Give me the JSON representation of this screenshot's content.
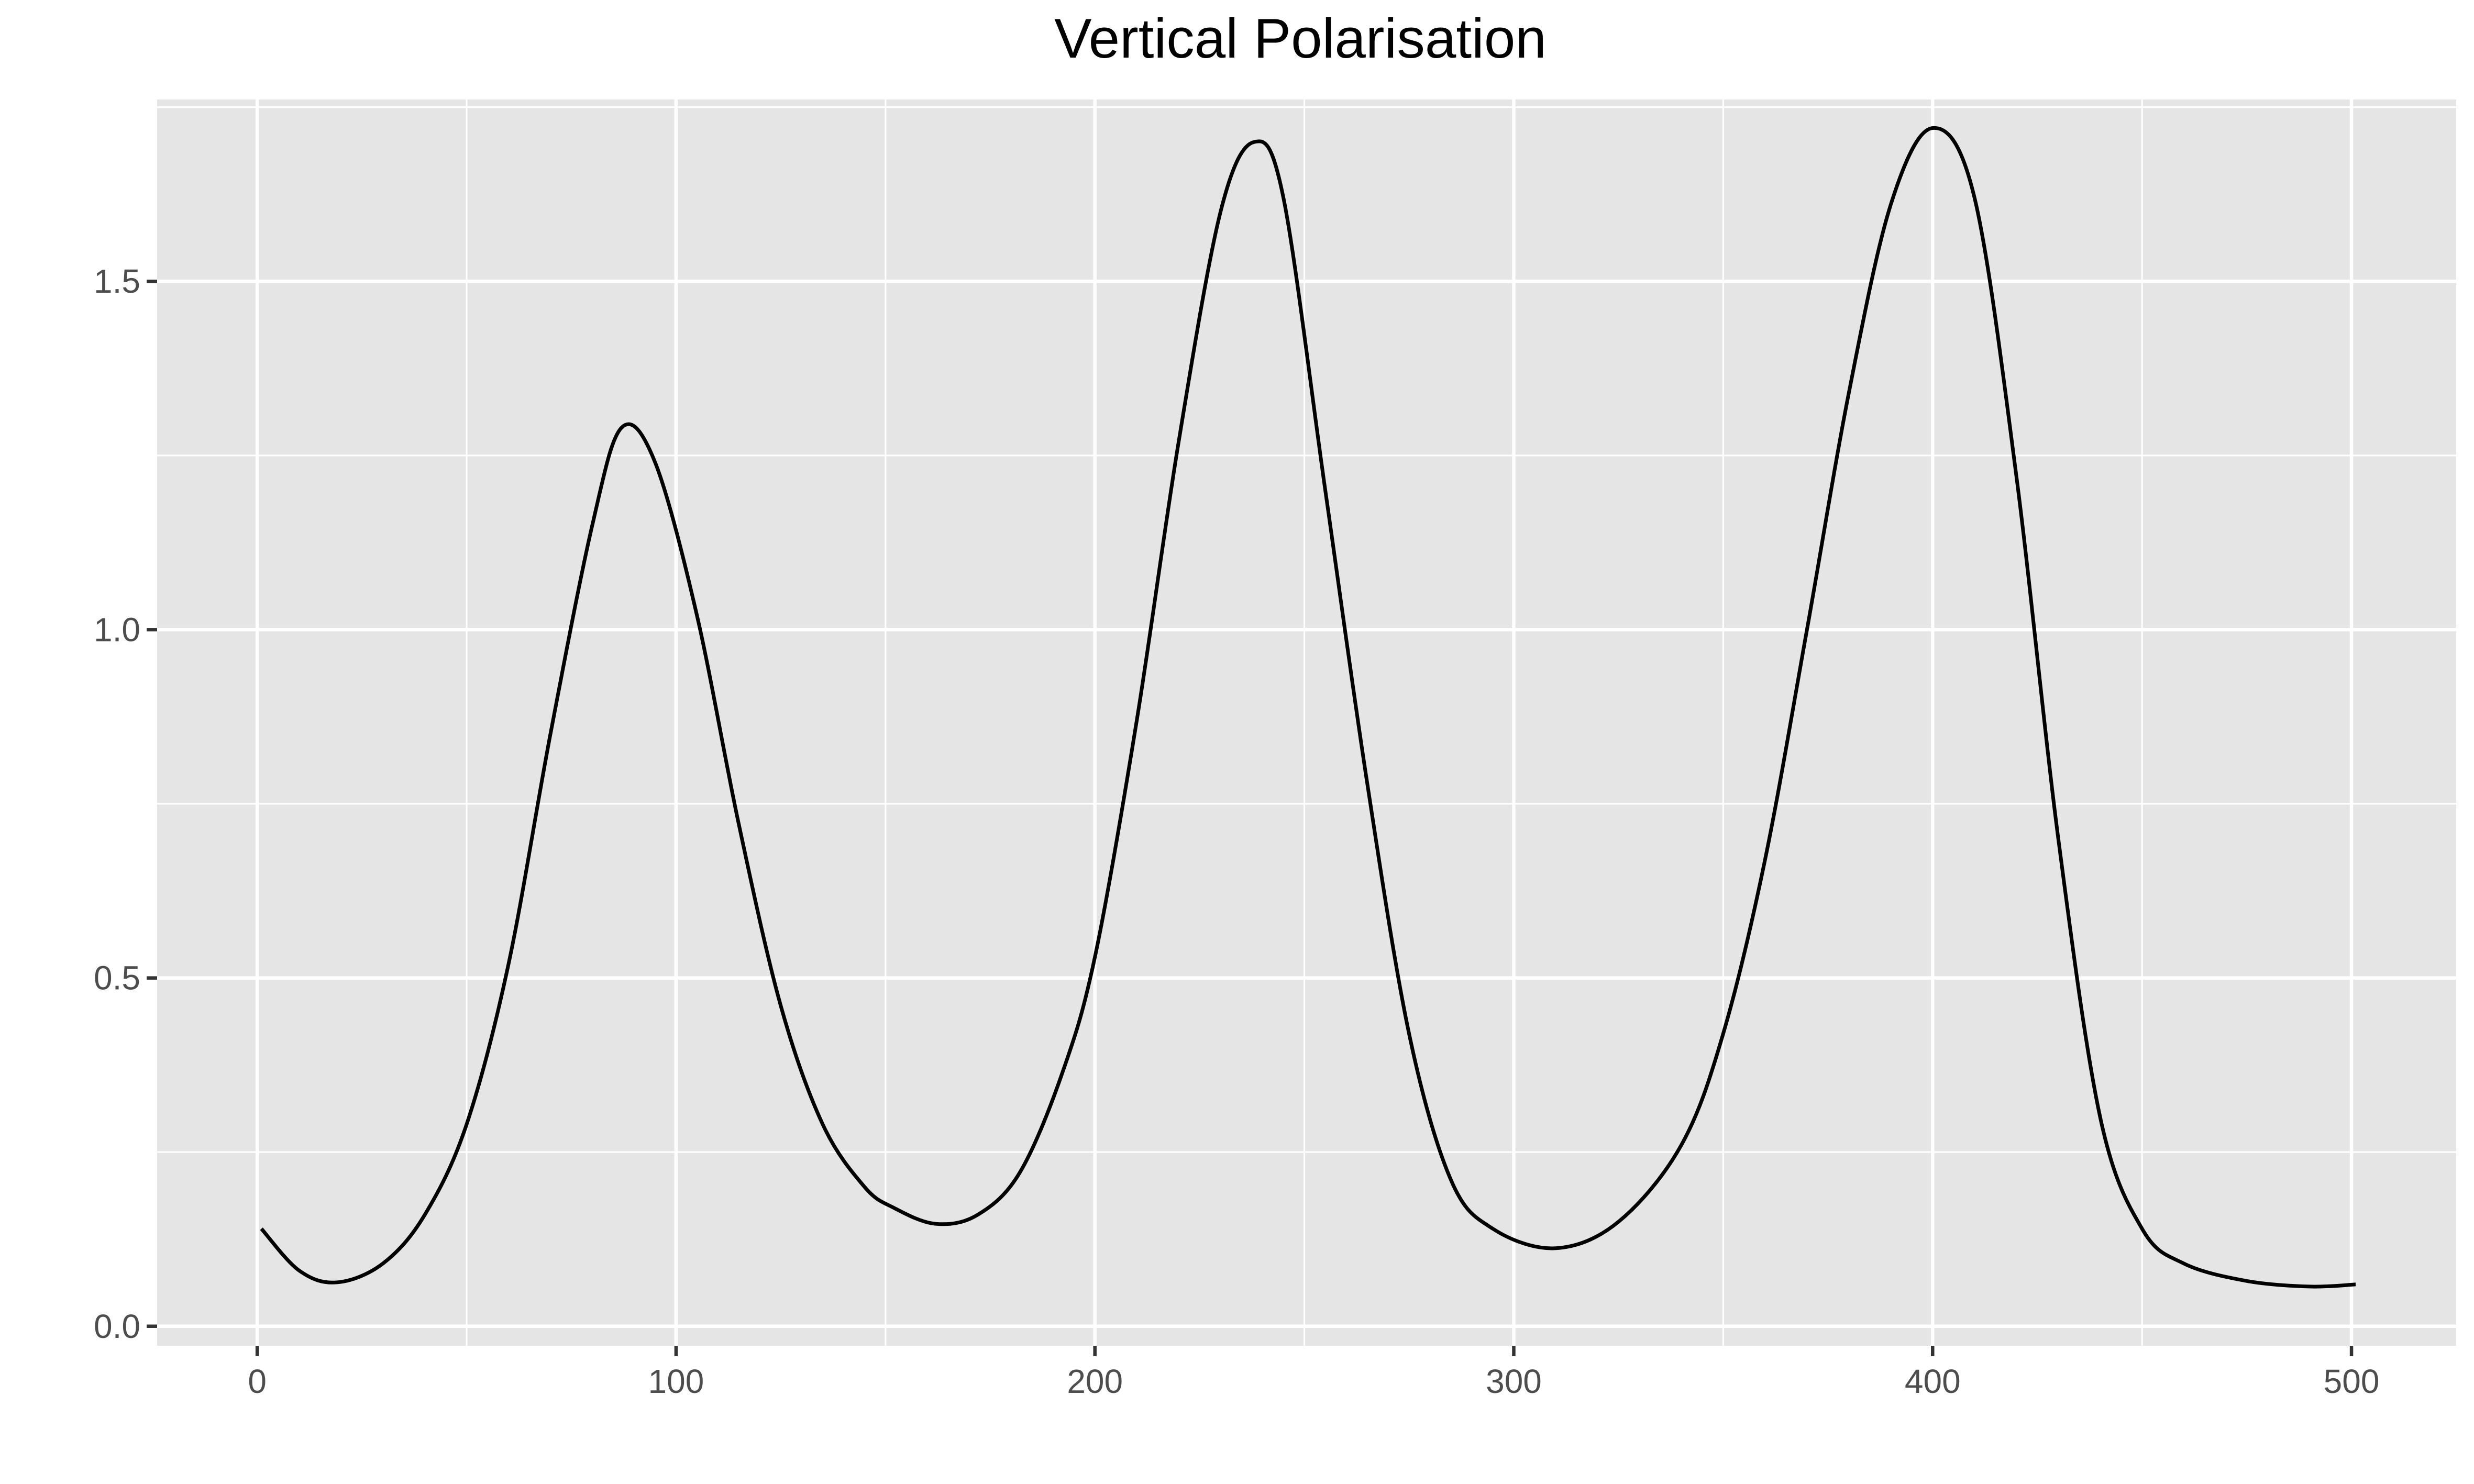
{
  "chart_data": {
    "type": "line",
    "title": "Vertical Polarisation",
    "xlabel": "",
    "ylabel": "",
    "xlim": [
      -23.9,
      525
    ],
    "ylim": [
      -0.028,
      1.761
    ],
    "grid": true,
    "legend": "none",
    "x_ticks": [
      0,
      100,
      200,
      300,
      400,
      500
    ],
    "x_tick_labels": [
      "0",
      "100",
      "200",
      "300",
      "400",
      "500"
    ],
    "x_minor_ticks": [
      50,
      150,
      250,
      350,
      450
    ],
    "y_ticks": [
      0.0,
      0.5,
      1.0,
      1.5
    ],
    "y_tick_labels": [
      "0.0",
      "0.5",
      "1.0",
      "1.5"
    ],
    "y_minor_ticks": [
      0.25,
      0.75,
      1.25,
      1.75
    ],
    "series": [
      {
        "x": [
          1,
          10,
          19,
          30,
          40,
          50,
          60,
          70,
          80,
          87,
          95,
          105,
          115,
          125,
          135,
          145,
          152,
          162,
          172,
          182,
          192,
          200,
          210,
          220,
          230,
          238,
          245,
          255,
          265,
          275,
          285,
          295,
          310,
          325,
          340,
          350,
          360,
          370,
          380,
          390,
          400,
          410,
          420,
          430,
          440,
          450,
          460,
          475,
          490,
          501
        ],
        "y": [
          0.14,
          0.08,
          0.063,
          0.09,
          0.16,
          0.29,
          0.52,
          0.85,
          1.15,
          1.29,
          1.24,
          1.02,
          0.72,
          0.46,
          0.29,
          0.2,
          0.17,
          0.147,
          0.16,
          0.22,
          0.36,
          0.53,
          0.87,
          1.27,
          1.6,
          1.7,
          1.62,
          1.2,
          0.78,
          0.42,
          0.21,
          0.14,
          0.112,
          0.15,
          0.26,
          0.42,
          0.67,
          1.0,
          1.34,
          1.61,
          1.72,
          1.62,
          1.22,
          0.7,
          0.3,
          0.14,
          0.09,
          0.065,
          0.057,
          0.06
        ],
        "color": "#000000"
      }
    ]
  }
}
